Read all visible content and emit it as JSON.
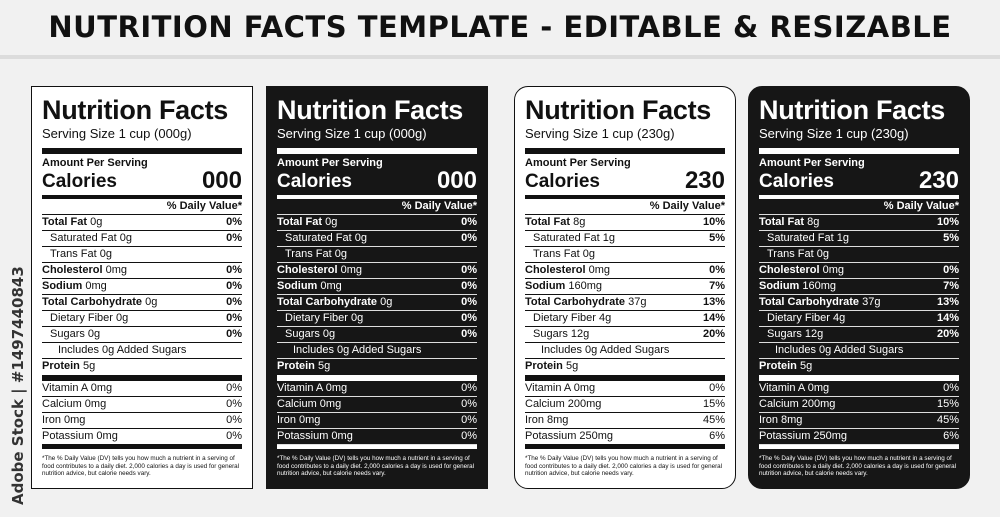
{
  "header": {
    "title": "NUTRITION FACTS TEMPLATE - EDITABLE & RESIZABLE"
  },
  "watermark": {
    "text": "Adobe Stock | #1497440843"
  },
  "labels": [
    {
      "title": "Nutrition Facts",
      "serving": "Serving Size 1 cup (000g)",
      "amount_per_serving": "Amount Per Serving",
      "calories_label": "Calories",
      "calories_value": "000",
      "dv_header": "% Daily Value*",
      "total_fat": {
        "label": "Total Fat",
        "amount": "0g",
        "dv": "0%"
      },
      "saturated_fat": {
        "label": "Saturated Fat 0g",
        "dv": "0%"
      },
      "trans_fat": {
        "label": "Trans Fat 0g"
      },
      "cholesterol": {
        "label": "Cholesterol",
        "amount": "0mg",
        "dv": "0%"
      },
      "sodium": {
        "label": "Sodium",
        "amount": "0mg",
        "dv": "0%"
      },
      "total_carb": {
        "label": "Total Carbohydrate",
        "amount": "0g",
        "dv": "0%"
      },
      "fiber": {
        "label": "Dietary Fiber 0g",
        "dv": "0%"
      },
      "sugars": {
        "label": "Sugars 0g",
        "dv": "0%"
      },
      "added_sugars": {
        "label": "Includes 0g Added Sugars"
      },
      "protein": {
        "label": "Protein",
        "amount": "5g"
      },
      "vitamin_a": {
        "label": "Vitamin A 0mg",
        "dv": "0%"
      },
      "calcium": {
        "label": "Calcium 0mg",
        "dv": "0%"
      },
      "iron": {
        "label": "Iron 0mg",
        "dv": "0%"
      },
      "potassium": {
        "label": "Potassium 0mg",
        "dv": "0%"
      },
      "footnote": "*The % Daily Value (DV) tells you how much a nutrient in a serving of food contributes to a daily diet. 2,000 calories a day is used for general nutrition advice, but calorie needs vary."
    },
    {
      "title": "Nutrition Facts",
      "serving": "Serving Size 1 cup (000g)",
      "amount_per_serving": "Amount Per Serving",
      "calories_label": "Calories",
      "calories_value": "000",
      "dv_header": "% Daily Value*",
      "total_fat": {
        "label": "Total Fat",
        "amount": "0g",
        "dv": "0%"
      },
      "saturated_fat": {
        "label": "Saturated Fat 0g",
        "dv": "0%"
      },
      "trans_fat": {
        "label": "Trans Fat 0g"
      },
      "cholesterol": {
        "label": "Cholesterol",
        "amount": "0mg",
        "dv": "0%"
      },
      "sodium": {
        "label": "Sodium",
        "amount": "0mg",
        "dv": "0%"
      },
      "total_carb": {
        "label": "Total Carbohydrate",
        "amount": "0g",
        "dv": "0%"
      },
      "fiber": {
        "label": "Dietary Fiber 0g",
        "dv": "0%"
      },
      "sugars": {
        "label": "Sugars 0g",
        "dv": "0%"
      },
      "added_sugars": {
        "label": "Includes 0g Added Sugars"
      },
      "protein": {
        "label": "Protein",
        "amount": "5g"
      },
      "vitamin_a": {
        "label": "Vitamin A 0mg",
        "dv": "0%"
      },
      "calcium": {
        "label": "Calcium 0mg",
        "dv": "0%"
      },
      "iron": {
        "label": "Iron 0mg",
        "dv": "0%"
      },
      "potassium": {
        "label": "Potassium 0mg",
        "dv": "0%"
      },
      "footnote": "*The % Daily Value (DV) tells you how much a nutrient in a serving of food contributes to a daily diet. 2,000 calories a day is used for general nutrition advice, but calorie needs vary."
    },
    {
      "title": "Nutrition Facts",
      "serving": "Serving Size 1 cup (230g)",
      "amount_per_serving": "Amount Per Serving",
      "calories_label": "Calories",
      "calories_value": "230",
      "dv_header": "% Daily Value*",
      "total_fat": {
        "label": "Total Fat",
        "amount": "8g",
        "dv": "10%"
      },
      "saturated_fat": {
        "label": "Saturated Fat 1g",
        "dv": "5%"
      },
      "trans_fat": {
        "label": "Trans Fat 0g"
      },
      "cholesterol": {
        "label": "Cholesterol",
        "amount": "0mg",
        "dv": "0%"
      },
      "sodium": {
        "label": "Sodium",
        "amount": "160mg",
        "dv": "7%"
      },
      "total_carb": {
        "label": "Total Carbohydrate",
        "amount": "37g",
        "dv": "13%"
      },
      "fiber": {
        "label": "Dietary Fiber 4g",
        "dv": "14%"
      },
      "sugars": {
        "label": "Sugars 12g",
        "dv": "20%"
      },
      "added_sugars": {
        "label": "Includes 0g Added Sugars"
      },
      "protein": {
        "label": "Protein",
        "amount": "5g"
      },
      "vitamin_a": {
        "label": "Vitamin A 0mg",
        "dv": "0%"
      },
      "calcium": {
        "label": "Calcium 200mg",
        "dv": "15%"
      },
      "iron": {
        "label": "Iron 8mg",
        "dv": "45%"
      },
      "potassium": {
        "label": "Potassium 250mg",
        "dv": "6%"
      },
      "footnote": "*The % Daily Value (DV) tells you how much a nutrient in a serving of food contributes to a daily diet. 2,000 calories a day is used for general nutrition advice, but calorie needs vary."
    },
    {
      "title": "Nutrition Facts",
      "serving": "Serving Size 1 cup (230g)",
      "amount_per_serving": "Amount Per Serving",
      "calories_label": "Calories",
      "calories_value": "230",
      "dv_header": "% Daily Value*",
      "total_fat": {
        "label": "Total Fat",
        "amount": "8g",
        "dv": "10%"
      },
      "saturated_fat": {
        "label": "Saturated Fat 1g",
        "dv": "5%"
      },
      "trans_fat": {
        "label": "Trans Fat 0g"
      },
      "cholesterol": {
        "label": "Cholesterol",
        "amount": "0mg",
        "dv": "0%"
      },
      "sodium": {
        "label": "Sodium",
        "amount": "160mg",
        "dv": "7%"
      },
      "total_carb": {
        "label": "Total Carbohydrate",
        "amount": "37g",
        "dv": "13%"
      },
      "fiber": {
        "label": "Dietary Fiber 4g",
        "dv": "14%"
      },
      "sugars": {
        "label": "Sugars 12g",
        "dv": "20%"
      },
      "added_sugars": {
        "label": "Includes 0g Added Sugars"
      },
      "protein": {
        "label": "Protein",
        "amount": "5g"
      },
      "vitamin_a": {
        "label": "Vitamin A 0mg",
        "dv": "0%"
      },
      "calcium": {
        "label": "Calcium 200mg",
        "dv": "15%"
      },
      "iron": {
        "label": "Iron 8mg",
        "dv": "45%"
      },
      "potassium": {
        "label": "Potassium 250mg",
        "dv": "6%"
      },
      "footnote": "*The % Daily Value (DV) tells you how much a nutrient in a serving of food contributes to a daily diet. 2,000 calories a day is used for general nutrition advice, but calorie needs vary."
    }
  ]
}
